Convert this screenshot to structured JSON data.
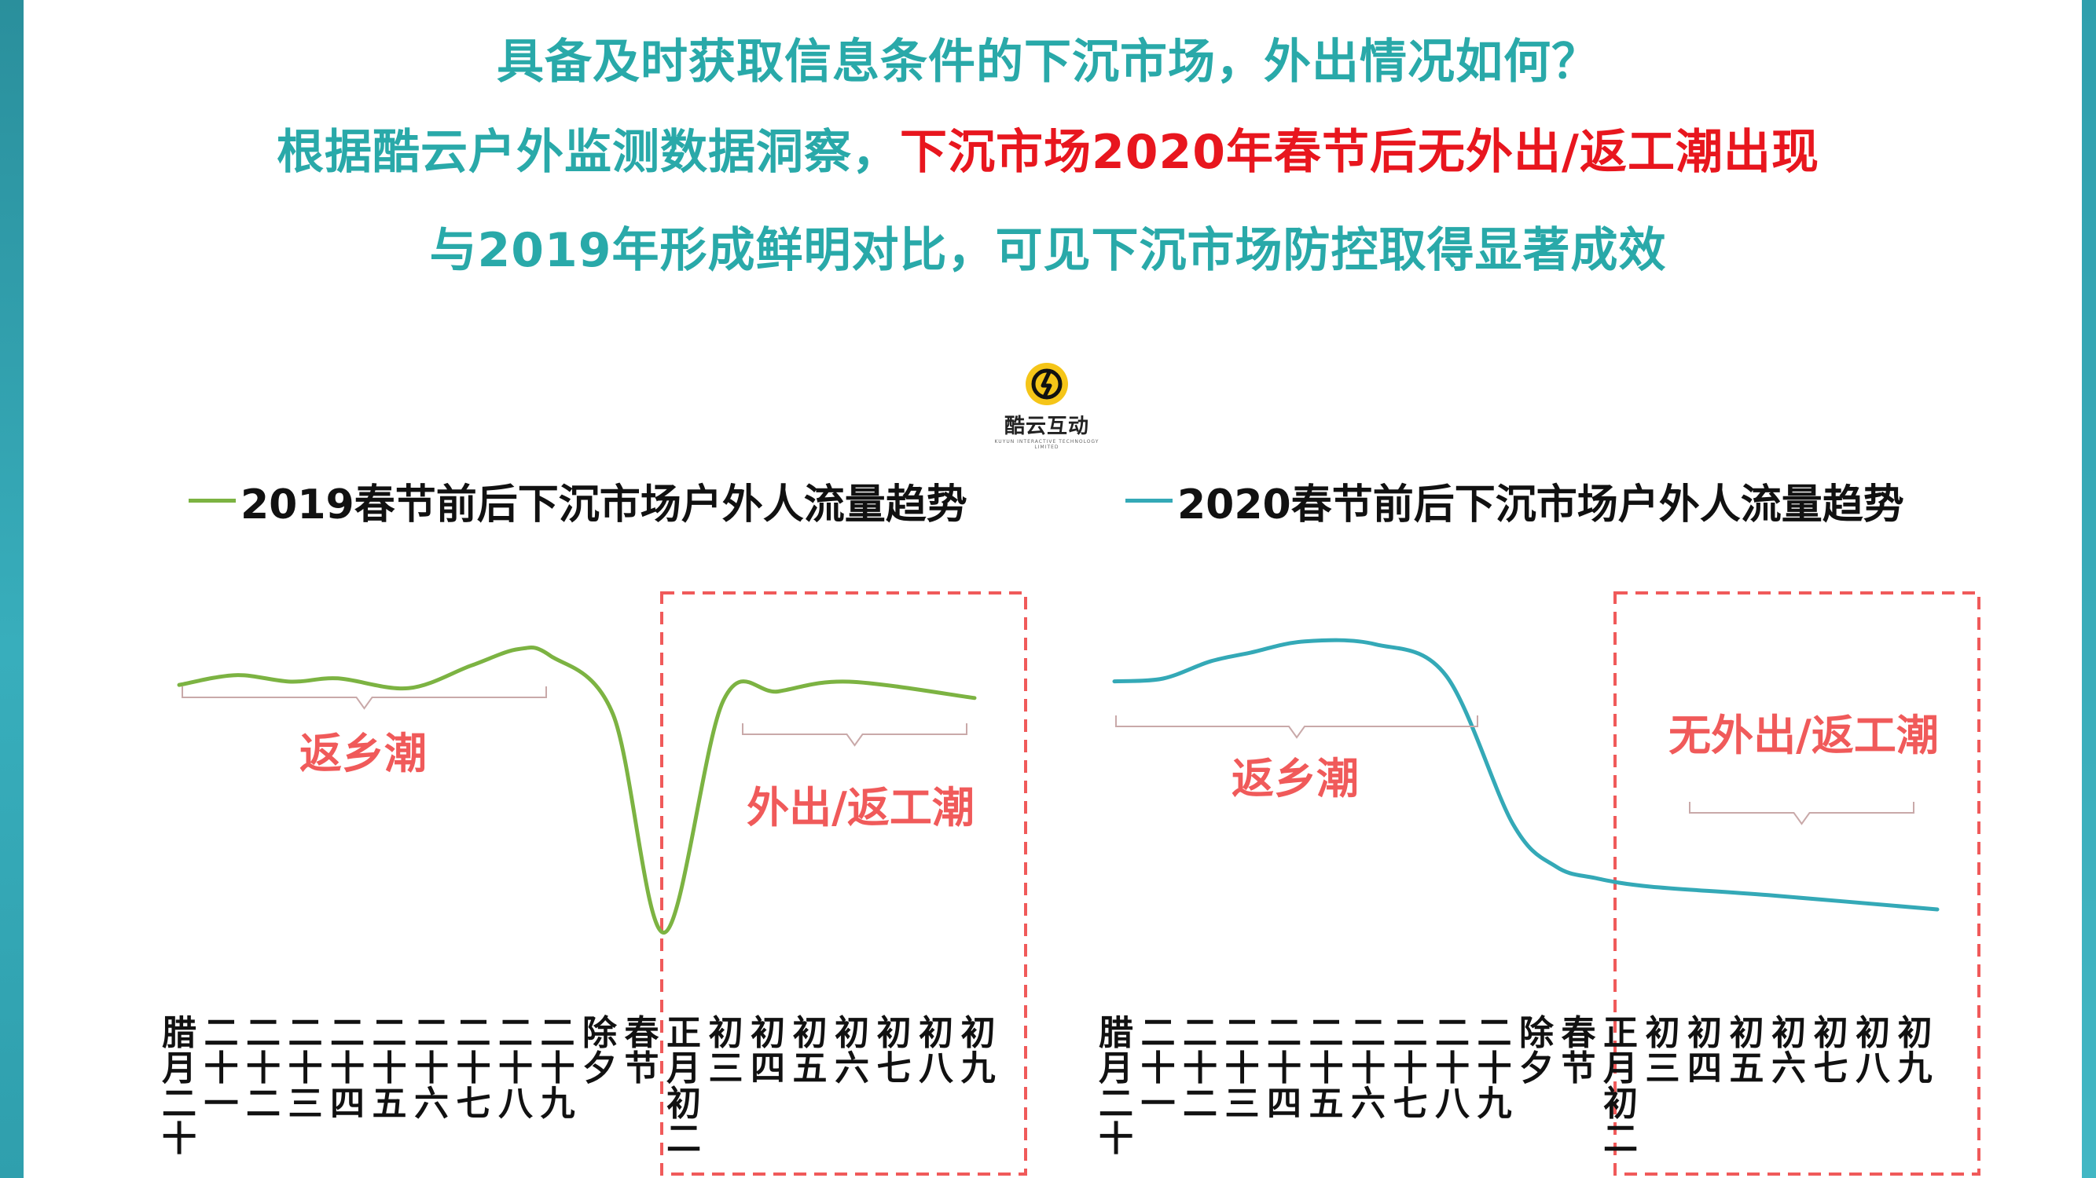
{
  "header": {
    "line1": "具备及时获取信息条件的下沉市场，外出情况如何？",
    "line2_part1": "根据酷云户外监测数据洞察，",
    "line2_part2": "下沉市场2020年春节后无外出/返工潮出现",
    "line3": "与2019年形成鲜明对比，可见下沉市场防控取得显著成效"
  },
  "logo": {
    "name": "酷云互动",
    "sub": "KUYUN INTERACTIVE TECHNOLOGY LIMITED"
  },
  "colors": {
    "green": "#7cb342",
    "teal": "#34a9b7",
    "red_annot": "#f05a5a",
    "accent_text": "#29a9a9"
  },
  "chart_data": [
    {
      "type": "line",
      "title": "2019春节前后下沉市场户外人流量趋势",
      "color": "#7cb342",
      "x": [
        "腊月二十",
        "二十一",
        "二十二",
        "二十三",
        "二十四",
        "二十五",
        "二十六",
        "二十七",
        "二十八",
        "二十九",
        "除夕",
        "春节",
        "正月初二",
        "初三",
        "初四",
        "初五",
        "初六",
        "初七",
        "初八",
        "初九"
      ],
      "relative_values": [
        0.79,
        0.82,
        0.8,
        0.81,
        0.78,
        0.85,
        0.9,
        0.88,
        0.7,
        0.03,
        0.74,
        0.77,
        0.8,
        0.75
      ],
      "annotations": [
        "返乡潮",
        "外出/返工潮"
      ]
    },
    {
      "type": "line",
      "title": "2020春节前后下沉市场户外人流量趋势",
      "color": "#34a9b7",
      "x": [
        "腊月二十",
        "二十一",
        "二十二",
        "二十三",
        "二十四",
        "二十五",
        "二十六",
        "二十七",
        "二十八",
        "二十九",
        "除夕",
        "春节",
        "正月初二",
        "初三",
        "初四",
        "初五",
        "初六",
        "初七",
        "初八",
        "初九"
      ],
      "relative_values": [
        0.8,
        0.81,
        0.87,
        0.9,
        0.94,
        0.93,
        0.82,
        0.3,
        0.15,
        0.11,
        0.08,
        0.05,
        0.0
      ],
      "annotations": [
        "返乡潮",
        "无外出/返工潮"
      ]
    }
  ]
}
